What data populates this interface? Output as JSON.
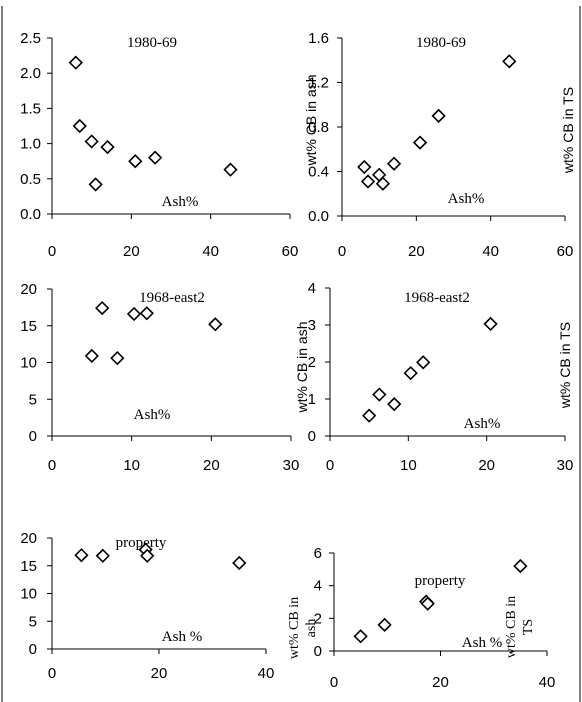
{
  "chart_data": [
    {
      "type": "scatter",
      "title": "1980-69",
      "xlabel": "Ash%",
      "ylabel": "",
      "xlim": [
        0,
        60
      ],
      "ylim": [
        0,
        2.5
      ],
      "xticks": [
        "0",
        "20",
        "40",
        "60"
      ],
      "yticks": [
        "0.0",
        "0.5",
        "1.0",
        "1.5",
        "2.0",
        "2.5"
      ],
      "x": [
        6,
        7,
        10,
        11,
        14,
        21,
        26,
        45
      ],
      "y": [
        2.15,
        1.25,
        1.03,
        0.42,
        0.95,
        0.75,
        0.8,
        0.63
      ]
    },
    {
      "type": "scatter",
      "title": "1980-69",
      "xlabel": "Ash%",
      "ylabel": "wt% CB in TS",
      "xlim": [
        0,
        60
      ],
      "ylim": [
        0,
        1.6
      ],
      "xticks": [
        "0",
        "20",
        "40",
        "60"
      ],
      "yticks": [
        "0.0",
        "0.4",
        "0.8",
        "1.2",
        "1.6"
      ],
      "x": [
        6,
        7,
        10,
        11,
        14,
        21,
        26,
        45
      ],
      "y": [
        0.44,
        0.31,
        0.37,
        0.29,
        0.47,
        0.66,
        0.9,
        1.39
      ]
    },
    {
      "type": "scatter",
      "title": "1968-east2",
      "xlabel": "Ash%",
      "ylabel": "wt% CB in ash",
      "xlim": [
        0,
        30
      ],
      "ylim": [
        0,
        20
      ],
      "xticks": [
        "0",
        "10",
        "20",
        "30"
      ],
      "yticks": [
        "0",
        "5",
        "10",
        "15",
        "20"
      ],
      "x": [
        5,
        6.3,
        8.2,
        10.3,
        11.9,
        20.5
      ],
      "y": [
        10.9,
        17.4,
        10.6,
        16.6,
        16.7,
        15.2
      ]
    },
    {
      "type": "scatter",
      "title": "1968-east2",
      "xlabel": "Ash%",
      "ylabel": "wt% CB in TS",
      "xlim": [
        0,
        30
      ],
      "ylim": [
        0,
        4
      ],
      "xticks": [
        "0",
        "10",
        "20",
        "30"
      ],
      "yticks": [
        "0",
        "1",
        "2",
        "3",
        "4"
      ],
      "x": [
        5,
        6.3,
        8.2,
        10.3,
        11.9,
        20.5
      ],
      "y": [
        0.55,
        1.12,
        0.86,
        1.7,
        1.99,
        3.03
      ]
    },
    {
      "type": "scatter",
      "title": "property",
      "xlabel": "Ash %",
      "ylabel": "wt% CB in ash",
      "xlim": [
        0,
        40
      ],
      "ylim": [
        0,
        20
      ],
      "xticks": [
        "0",
        "20",
        "40"
      ],
      "yticks": [
        "0",
        "5",
        "10",
        "15",
        "20"
      ],
      "x": [
        5.5,
        9.5,
        17.5,
        17.8,
        35
      ],
      "y": [
        16.9,
        16.8,
        17.9,
        16.8,
        15.5
      ]
    },
    {
      "type": "scatter",
      "title": "property",
      "xlabel": "Ash %",
      "ylabel": "wt% CB in TS",
      "xlim": [
        0,
        40
      ],
      "ylim": [
        0,
        6
      ],
      "xticks": [
        "0",
        "20",
        "40"
      ],
      "yticks": [
        "0",
        "2",
        "4",
        "6"
      ],
      "x": [
        5,
        9.5,
        17.3,
        17.6,
        35
      ],
      "y": [
        0.9,
        1.6,
        3.02,
        2.9,
        5.2
      ]
    }
  ]
}
